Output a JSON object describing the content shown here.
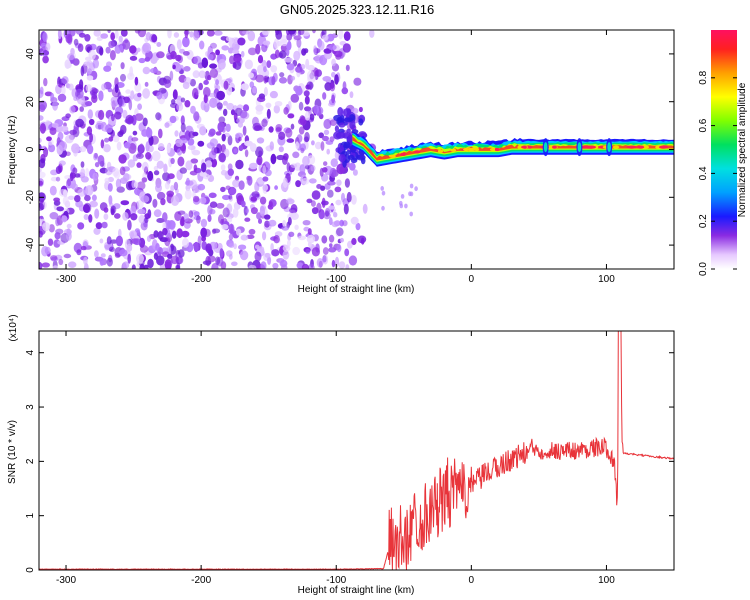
{
  "title": "GN05.2025.323.12.11.R16",
  "chart_data": [
    {
      "type": "heatmap",
      "xlabel": "Height of straight line (km)",
      "ylabel": "Frequency (Hz)",
      "xlim": [
        -320,
        150
      ],
      "ylim": [
        -50,
        50
      ],
      "x_ticks": [
        "-300",
        "-200",
        "-100",
        "0",
        "100"
      ],
      "y_ticks": [
        "-40",
        "-20",
        "0",
        "20",
        "40"
      ],
      "noise_region_x": [
        -320,
        -82
      ],
      "signal_trace": {
        "x": [
          -90,
          -80,
          -70,
          -60,
          -50,
          -40,
          -30,
          -20,
          -10,
          0,
          10,
          20,
          30,
          40,
          50,
          60,
          70,
          80,
          90,
          100,
          110,
          120,
          130,
          140,
          150
        ],
        "y": [
          5,
          2,
          -4,
          -3,
          -2,
          -1,
          0,
          -1,
          0,
          0,
          0,
          0,
          1,
          1,
          1,
          1,
          1,
          1,
          1,
          1,
          1,
          1,
          1,
          1,
          1
        ]
      },
      "colorbar": {
        "label": "Normalized spectral amplitude",
        "ticks": [
          "0.0",
          "0.2",
          "0.4",
          "0.6",
          "0.8"
        ],
        "range": [
          0,
          1
        ]
      }
    },
    {
      "type": "line",
      "xlabel": "Height of straight line (km)",
      "ylabel": "SNR (10 * v/v)",
      "scale_label": "(x10⁴)",
      "xlim": [
        -320,
        150
      ],
      "ylim": [
        0,
        4.4
      ],
      "x_ticks": [
        "-300",
        "-200",
        "-100",
        "0",
        "100"
      ],
      "y_ticks": [
        "0",
        "1",
        "2",
        "3",
        "4"
      ],
      "series": [
        {
          "color": "#e8343a",
          "x": [
            -320,
            -200,
            -100,
            -65,
            -60,
            -55,
            -50,
            -45,
            -40,
            -35,
            -30,
            -25,
            -20,
            -15,
            -10,
            -5,
            0,
            10,
            20,
            30,
            40,
            45,
            50,
            60,
            70,
            80,
            90,
            100,
            106,
            108,
            110,
            112,
            130,
            150
          ],
          "y": [
            0.01,
            0.01,
            0.01,
            0.02,
            0.5,
            0.6,
            0.5,
            0.8,
            0.9,
            1.0,
            1.1,
            1.2,
            1.35,
            1.4,
            1.45,
            1.5,
            1.55,
            1.75,
            1.9,
            2.05,
            2.15,
            2.25,
            2.2,
            2.2,
            2.2,
            2.2,
            2.25,
            2.25,
            2.0,
            1.2,
            4.4,
            2.15,
            2.1,
            2.05
          ]
        }
      ]
    }
  ]
}
